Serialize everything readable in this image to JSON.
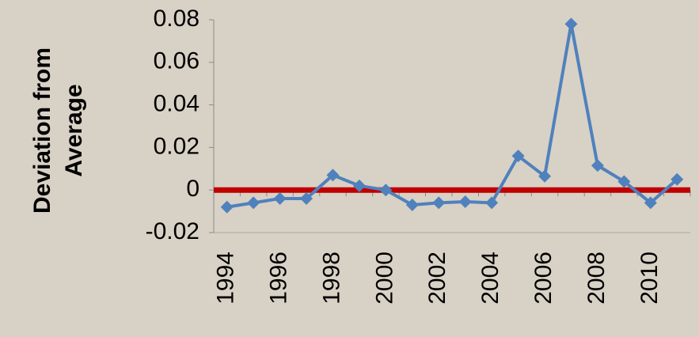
{
  "chart_data": {
    "type": "line",
    "ylabel": [
      "Deviation from",
      "Average"
    ],
    "categories": [
      "1994",
      null,
      "1996",
      null,
      "1998",
      null,
      "2000",
      null,
      "2002",
      null,
      "2004",
      null,
      "2006",
      null,
      "2008",
      null,
      "2010",
      null
    ],
    "series": [
      {
        "color": "#4f81bd",
        "values": [
          -0.008,
          -0.006,
          -0.004,
          -0.004,
          0.007,
          0.002,
          0.0,
          -0.007,
          -0.006,
          -0.0055,
          -0.006,
          0.016,
          0.0065,
          0.078,
          0.0115,
          0.004,
          -0.006,
          0.005
        ]
      }
    ],
    "reference_line": {
      "value": 0,
      "color": "#c00000"
    },
    "ylim": [
      -0.02,
      0.08
    ],
    "yticks": [
      -0.02,
      0,
      0.02,
      0.04,
      0.06,
      0.08
    ],
    "grid": false
  }
}
